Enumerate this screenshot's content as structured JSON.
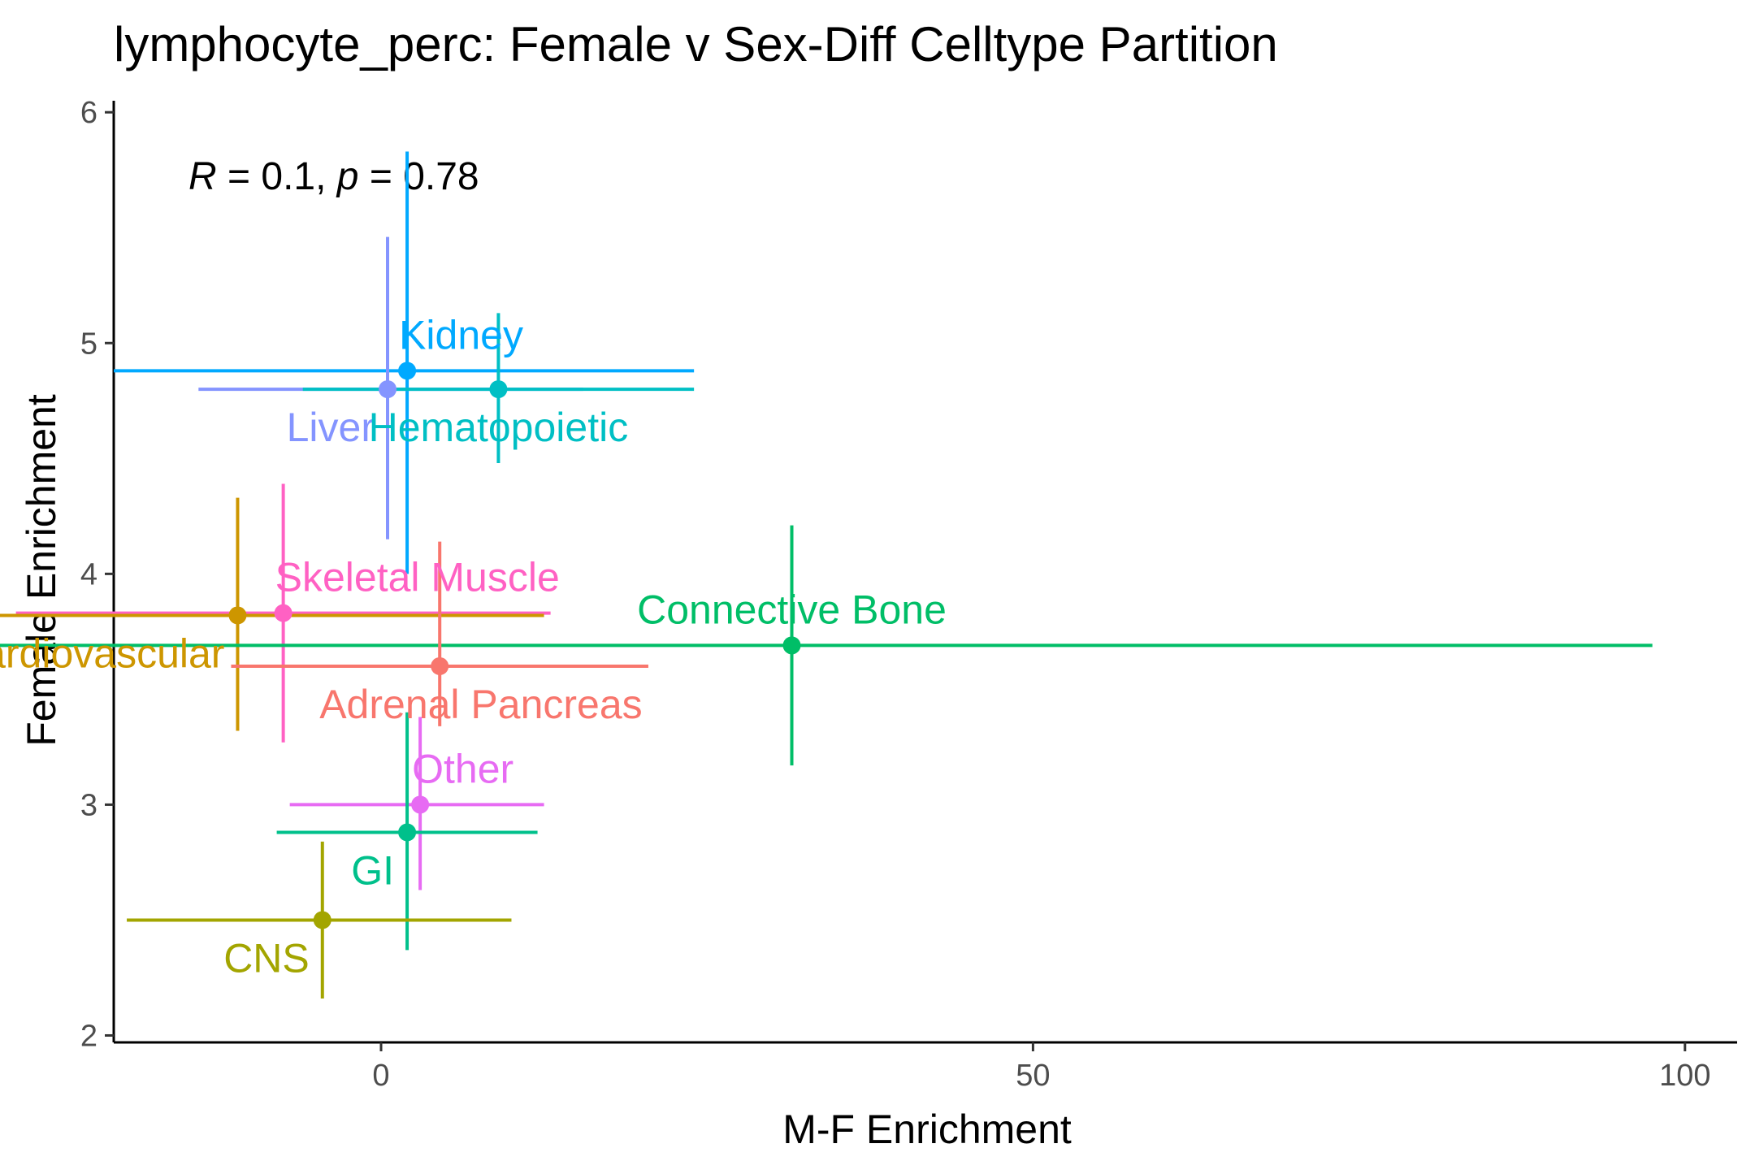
{
  "chart_data": {
    "type": "scatter",
    "title": "lymphocyte_perc: Female v Sex-Diff Celltype Partition",
    "xlabel": "M-F Enrichment",
    "ylabel": "Female Enrichment",
    "xlim": [
      -20.5,
      104
    ],
    "ylim": [
      1.97,
      6.05
    ],
    "x_ticks": [
      0,
      50,
      100
    ],
    "y_ticks": [
      2,
      3,
      4,
      5,
      6
    ],
    "grid": false,
    "legend": "none",
    "annotation": {
      "r_symbol": "R",
      "r_value": " = 0.1, ",
      "p_symbol": "p",
      "p_value": " = 0.78"
    },
    "points": [
      {
        "name": "Kidney",
        "x": 2.0,
        "y": 4.88,
        "x_low": -20.5,
        "x_high": 24.0,
        "y_low": 4.0,
        "y_high": 5.83,
        "color": "#00A9FF",
        "label_pos": "above-right"
      },
      {
        "name": "Liver",
        "x": 0.5,
        "y": 4.8,
        "x_low": -14.0,
        "x_high": 15.5,
        "y_low": 4.15,
        "y_high": 5.46,
        "color": "#8494FF",
        "label_pos": "below-left"
      },
      {
        "name": "Hematopoietic",
        "x": 9.0,
        "y": 4.8,
        "x_low": -6.0,
        "x_high": 24.0,
        "y_low": 4.48,
        "y_high": 5.13,
        "color": "#00BFC4",
        "label_pos": "below"
      },
      {
        "name": "Skeletal Muscle",
        "x": -7.5,
        "y": 3.83,
        "x_low": -28.0,
        "x_high": 13.0,
        "y_low": 3.27,
        "y_high": 4.39,
        "color": "#FF61C3",
        "label_pos": "above-right"
      },
      {
        "name": "Cardiovascular",
        "x": -11.0,
        "y": 3.82,
        "x_low": -34.0,
        "x_high": 12.5,
        "y_low": 3.32,
        "y_high": 4.33,
        "color": "#CD9600",
        "label_pos": "below-left"
      },
      {
        "name": "Connective Bone",
        "x": 31.5,
        "y": 3.69,
        "x_low": -34.0,
        "x_high": 97.5,
        "y_low": 3.17,
        "y_high": 4.21,
        "color": "#00BE67",
        "label_pos": "above"
      },
      {
        "name": "Adrenal Pancreas",
        "x": 4.5,
        "y": 3.6,
        "x_low": -11.5,
        "x_high": 20.5,
        "y_low": 3.34,
        "y_high": 4.14,
        "color": "#F8766D",
        "label_pos": "below-right"
      },
      {
        "name": "Other",
        "x": 3.0,
        "y": 3.0,
        "x_low": -7.0,
        "x_high": 12.5,
        "y_low": 2.63,
        "y_high": 3.38,
        "color": "#E76BF3",
        "label_pos": "above-right"
      },
      {
        "name": "GI",
        "x": 2.0,
        "y": 2.88,
        "x_low": -8.0,
        "x_high": 12.0,
        "y_low": 2.37,
        "y_high": 3.4,
        "color": "#00C08B",
        "label_pos": "below-left"
      },
      {
        "name": "CNS",
        "x": -4.5,
        "y": 2.5,
        "x_low": -19.5,
        "x_high": 10.0,
        "y_low": 2.16,
        "y_high": 2.84,
        "color": "#A3A500",
        "label_pos": "below-left"
      }
    ]
  }
}
